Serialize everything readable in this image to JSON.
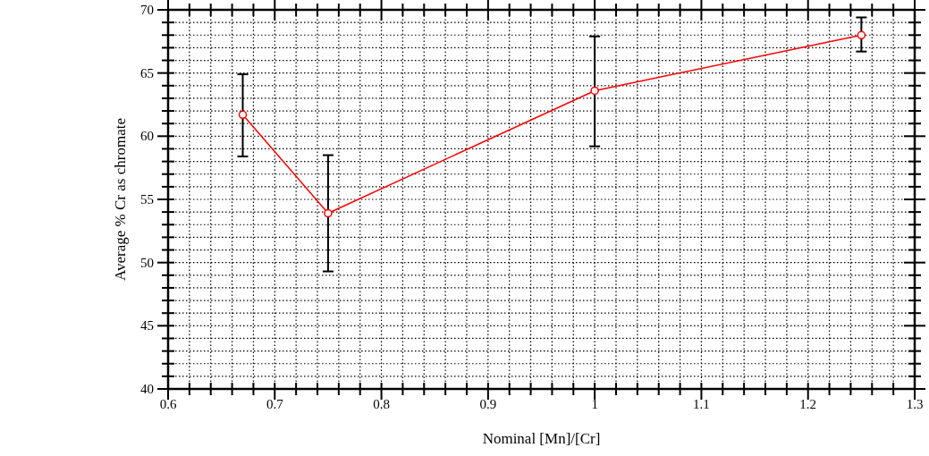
{
  "chart_data": {
    "type": "line",
    "xlabel": "Nominal [Mn]/[Cr]",
    "ylabel": "Average % Cr as chromate",
    "x": [
      0.67,
      0.75,
      1.0,
      1.25
    ],
    "series": [
      {
        "color": "#ff0000",
        "values": [
          61.7,
          53.9,
          63.6,
          68.0
        ],
        "errors": [
          [
            58.4,
            64.9
          ],
          [
            49.3,
            58.5
          ],
          [
            59.2,
            67.9
          ],
          [
            66.7,
            69.4
          ]
        ]
      }
    ],
    "xlim": [
      0.6,
      1.3
    ],
    "xticks": [
      0.6,
      {
        "value": 0.62,
        "label": null
      },
      {
        "value": 0.64,
        "label": null
      },
      {
        "value": 0.66,
        "label": null
      },
      {
        "value": 0.68,
        "label": null
      },
      0.7,
      {
        "value": 0.72,
        "label": null
      },
      {
        "value": 0.74,
        "label": null
      },
      {
        "value": 0.76,
        "label": null
      },
      {
        "value": 0.78,
        "label": null
      },
      0.8,
      {
        "value": 0.82,
        "label": null
      },
      {
        "value": 0.84,
        "label": null
      },
      {
        "value": 0.86,
        "label": null
      },
      {
        "value": 0.88,
        "label": null
      },
      0.9,
      {
        "value": 0.92,
        "label": null
      },
      {
        "value": 0.94,
        "label": null
      },
      {
        "value": 0.96,
        "label": null
      },
      {
        "value": 0.98,
        "label": null
      },
      1,
      {
        "value": 1.02,
        "label": null
      },
      {
        "value": 1.04,
        "label": null
      },
      {
        "value": 1.06,
        "label": null
      },
      {
        "value": 1.08,
        "label": null
      },
      1.1,
      {
        "value": 1.12,
        "label": null
      },
      {
        "value": 1.14,
        "label": null
      },
      {
        "value": 1.16,
        "label": null
      },
      {
        "value": 1.18,
        "label": null
      },
      1.2,
      {
        "value": 1.22,
        "label": null
      },
      {
        "value": 1.24,
        "label": null
      },
      {
        "value": 1.26,
        "label": null
      },
      {
        "value": 1.28,
        "label": null
      },
      1.3
    ],
    "ylim": [
      40,
      70
    ],
    "yticks": [
      40,
      {
        "value": 41,
        "label": null
      },
      {
        "value": 42,
        "label": null
      },
      {
        "value": 43,
        "label": null
      },
      {
        "value": 44,
        "label": null
      },
      45,
      {
        "value": 46,
        "label": null
      },
      {
        "value": 47,
        "label": null
      },
      {
        "value": 48,
        "label": null
      },
      {
        "value": 49,
        "label": null
      },
      50,
      {
        "value": 51,
        "label": null
      },
      {
        "value": 52,
        "label": null
      },
      {
        "value": 53,
        "label": null
      },
      {
        "value": 54,
        "label": null
      },
      55,
      {
        "value": 56,
        "label": null
      },
      {
        "value": 57,
        "label": null
      },
      {
        "value": 58,
        "label": null
      },
      {
        "value": 59,
        "label": null
      },
      60,
      {
        "value": 61,
        "label": null
      },
      {
        "value": 62,
        "label": null
      },
      {
        "value": 63,
        "label": null
      },
      {
        "value": 64,
        "label": null
      },
      65,
      {
        "value": 66,
        "label": null
      },
      {
        "value": 67,
        "label": null
      },
      {
        "value": 68,
        "label": null
      },
      {
        "value": 69,
        "label": null
      },
      70
    ],
    "grid": true,
    "marker": "circle",
    "line_style": "solid"
  }
}
